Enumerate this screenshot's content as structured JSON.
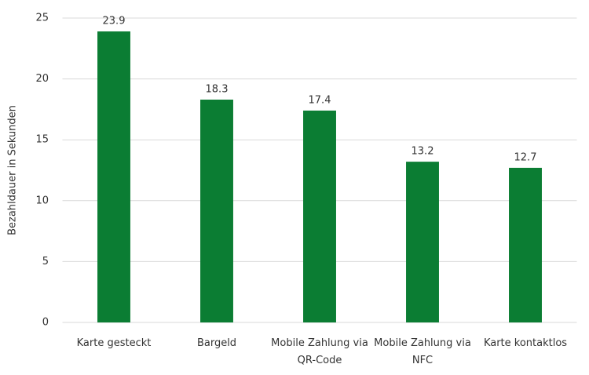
{
  "chart_data": {
    "type": "bar",
    "y_label": "Bezahldauer in Sekunden",
    "categories": [
      "Karte gesteckt",
      "Bargeld",
      "Mobile Zahlung via QR-Code",
      "Mobile Zahlung via NFC",
      "Karte kontaktlos"
    ],
    "values": [
      23.9,
      18.3,
      17.4,
      13.2,
      12.7
    ],
    "color": "#0b7d33",
    "ylim": [
      0,
      25
    ],
    "yticks": [
      0,
      5,
      10,
      15,
      20,
      25
    ],
    "grid": true
  }
}
